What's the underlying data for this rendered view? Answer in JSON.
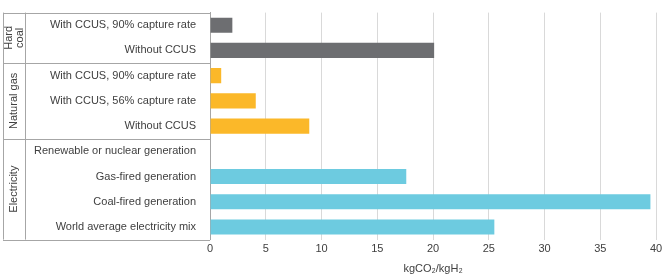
{
  "chart_data": {
    "type": "bar",
    "orientation": "horizontal",
    "categories": [
      "With CCUS, 90% capture rate",
      "Without CCUS",
      "With CCUS, 90% capture rate",
      "With CCUS, 56% capture rate",
      "Without CCUS",
      "Renewable or nuclear generation",
      "Gas-fired generation",
      "Coal-fired generation",
      "World average electricity mix"
    ],
    "groups": [
      "Hard coal",
      "Hard coal",
      "Natural gas",
      "Natural gas",
      "Natural gas",
      "Electricity",
      "Electricity",
      "Electricity",
      "Electricity"
    ],
    "values": [
      2.0,
      20.1,
      1.0,
      4.1,
      8.9,
      0,
      17.6,
      39.5,
      25.5
    ],
    "colors": [
      "#6d6e71",
      "#6d6e71",
      "#fbb829",
      "#fbb829",
      "#fbb829",
      "#6dcbe0",
      "#6dcbe0",
      "#6dcbe0",
      "#6dcbe0"
    ],
    "xlim": [
      0,
      40
    ],
    "xticks": [
      0,
      5,
      10,
      15,
      20,
      25,
      30,
      35,
      40
    ],
    "x_label": "kgCO₂/kgH₂",
    "grid": true
  }
}
